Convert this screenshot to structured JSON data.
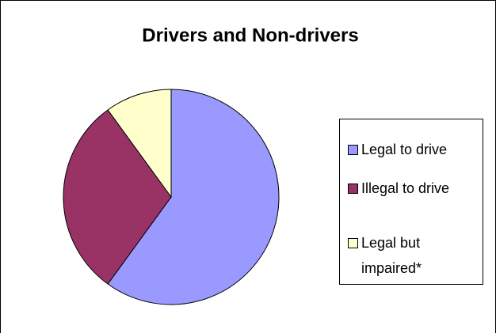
{
  "chart_data": {
    "type": "pie",
    "title": "Drivers and Non-drivers",
    "categories": [
      "Legal to drive",
      "Illegal to drive",
      "Legal but impaired*"
    ],
    "values": [
      60,
      30,
      10
    ],
    "colors": [
      "#9999ff",
      "#993366",
      "#ffffcc"
    ]
  }
}
